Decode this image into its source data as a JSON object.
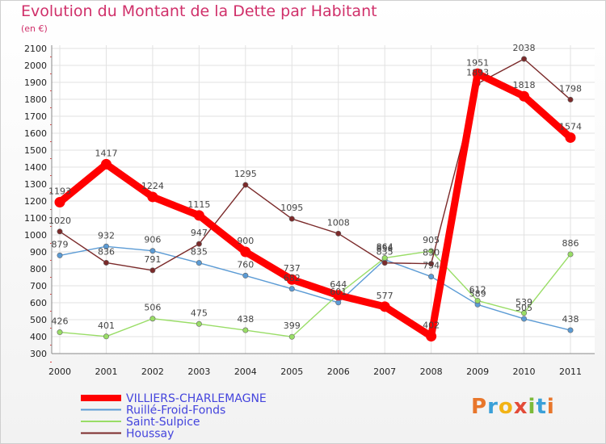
{
  "header": {
    "title": "Evolution du Montant de la Dette par Habitant",
    "unit": "(en €)"
  },
  "logo": {
    "text": "Proxiti",
    "colors": [
      "#e8762b",
      "#3aa0d8",
      "#f2b315",
      "#e34b38",
      "#7cba3a",
      "#3aa0d8",
      "#e8762b"
    ]
  },
  "chart_data": {
    "type": "line",
    "x": [
      "2000",
      "2001",
      "2002",
      "2003",
      "2004",
      "2005",
      "2006",
      "2007",
      "2008",
      "2009",
      "2010",
      "2011"
    ],
    "yticks": [
      "300",
      "400",
      "500",
      "600",
      "700",
      "800",
      "900",
      "1000",
      "1100",
      "1200",
      "1300",
      "1400",
      "1500",
      "1600",
      "1700",
      "1800",
      "1900",
      "2000",
      "2100"
    ],
    "ylim": [
      300,
      2100
    ],
    "grid": true,
    "legend_position": "bottom-left",
    "series": [
      {
        "name": "VILLIERS-CHARLEMAGNE",
        "color": "#ff0000",
        "legend_color": "#4444dd",
        "emphasis": true,
        "values": [
          1193,
          1417,
          1224,
          1115,
          900,
          737,
          644,
          577,
          402,
          1951,
          1818,
          1574
        ],
        "labels": [
          "1193",
          "1417",
          "1224",
          "1115",
          "900",
          "737",
          "644",
          "577",
          "402",
          "1951",
          "1818",
          "1574"
        ]
      },
      {
        "name": "Ruillé-Froid-Fonds",
        "color": "#5b9bd5",
        "legend_color": "#4444dd",
        "emphasis": false,
        "values": [
          879,
          932,
          906,
          835,
          760,
          682,
          601,
          854,
          754,
          589,
          505,
          438
        ],
        "labels": [
          "879",
          "932",
          "906",
          "835",
          "760",
          "682",
          "601",
          "854",
          "754",
          "589",
          "505",
          "438"
        ]
      },
      {
        "name": "Saint-Sulpice",
        "color": "#99dd66",
        "legend_color": "#4444dd",
        "emphasis": false,
        "values": [
          426,
          401,
          506,
          475,
          438,
          399,
          650,
          864,
          905,
          612,
          539,
          886
        ],
        "labels": [
          "426",
          "401",
          "506",
          "475",
          "438",
          "399",
          "",
          "864",
          "905",
          "612",
          "539",
          "886"
        ]
      },
      {
        "name": "Houssay",
        "color": "#7b2a2a",
        "legend_color": "#4444dd",
        "emphasis": false,
        "values": [
          1020,
          836,
          791,
          947,
          1295,
          1095,
          1008,
          835,
          830,
          1893,
          2038,
          1798
        ],
        "labels": [
          "1020",
          "836",
          "791",
          "947",
          "1295",
          "1095",
          "1008",
          "835",
          "830",
          "1893",
          "2038",
          "1798"
        ]
      }
    ]
  }
}
